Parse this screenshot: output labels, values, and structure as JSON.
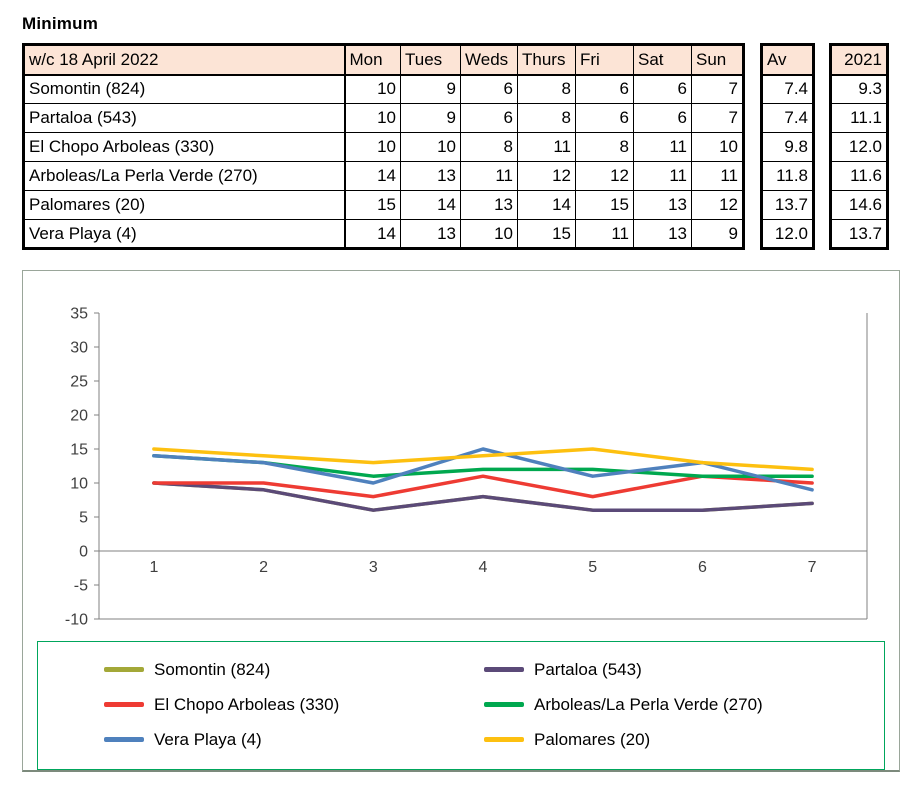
{
  "title": "Minimum",
  "table": {
    "week_label": "w/c 18 April 2022",
    "day_headers": [
      "Mon",
      "Tues",
      "Weds",
      "Thurs",
      "Fri",
      "Sat",
      "Sun"
    ],
    "av_header": "Av",
    "prev_year_header": "2021",
    "header_bg": "#fce4d6",
    "rows": [
      {
        "name": "Somontin (824)",
        "values": [
          10,
          9,
          6,
          8,
          6,
          6,
          7
        ],
        "av": "7.4",
        "prev": "9.3"
      },
      {
        "name": "Partaloa (543)",
        "values": [
          10,
          9,
          6,
          8,
          6,
          6,
          7
        ],
        "av": "7.4",
        "prev": "11.1"
      },
      {
        "name": "El Chopo Arboleas (330)",
        "values": [
          10,
          10,
          8,
          11,
          8,
          11,
          10
        ],
        "av": "9.8",
        "prev": "12.0"
      },
      {
        "name": "Arboleas/La Perla Verde (270)",
        "values": [
          14,
          13,
          11,
          12,
          12,
          11,
          11
        ],
        "av": "11.8",
        "prev": "11.6"
      },
      {
        "name": "Palomares (20)",
        "values": [
          15,
          14,
          13,
          14,
          15,
          13,
          12
        ],
        "av": "13.7",
        "prev": "14.6"
      },
      {
        "name": "Vera Playa (4)",
        "values": [
          14,
          13,
          10,
          15,
          11,
          13,
          9
        ],
        "av": "12.0",
        "prev": "13.7"
      }
    ]
  },
  "chart_data": {
    "type": "line",
    "title": "",
    "x": [
      1,
      2,
      3,
      4,
      5,
      6,
      7
    ],
    "ylim": [
      -10,
      35
    ],
    "ytick_step": 5,
    "grid": false,
    "legend_position": "bottom",
    "series": [
      {
        "name": "Somontin (824)",
        "color": "#a3a838",
        "values": [
          10,
          9,
          6,
          8,
          6,
          6,
          7
        ]
      },
      {
        "name": "Partaloa (543)",
        "color": "#5b4a78",
        "values": [
          10,
          9,
          6,
          8,
          6,
          6,
          7
        ]
      },
      {
        "name": "El Chopo Arboleas (330)",
        "color": "#ee3b33",
        "values": [
          10,
          10,
          8,
          11,
          8,
          11,
          10
        ]
      },
      {
        "name": "Arboleas/La Perla Verde (270)",
        "color": "#00a84f",
        "values": [
          14,
          13,
          11,
          12,
          12,
          11,
          11
        ]
      },
      {
        "name": "Vera Playa (4)",
        "color": "#4f81bd",
        "values": [
          14,
          13,
          10,
          15,
          11,
          13,
          9
        ]
      },
      {
        "name": "Palomares (20)",
        "color": "#fdc010",
        "values": [
          15,
          14,
          13,
          14,
          15,
          13,
          12
        ]
      }
    ]
  }
}
